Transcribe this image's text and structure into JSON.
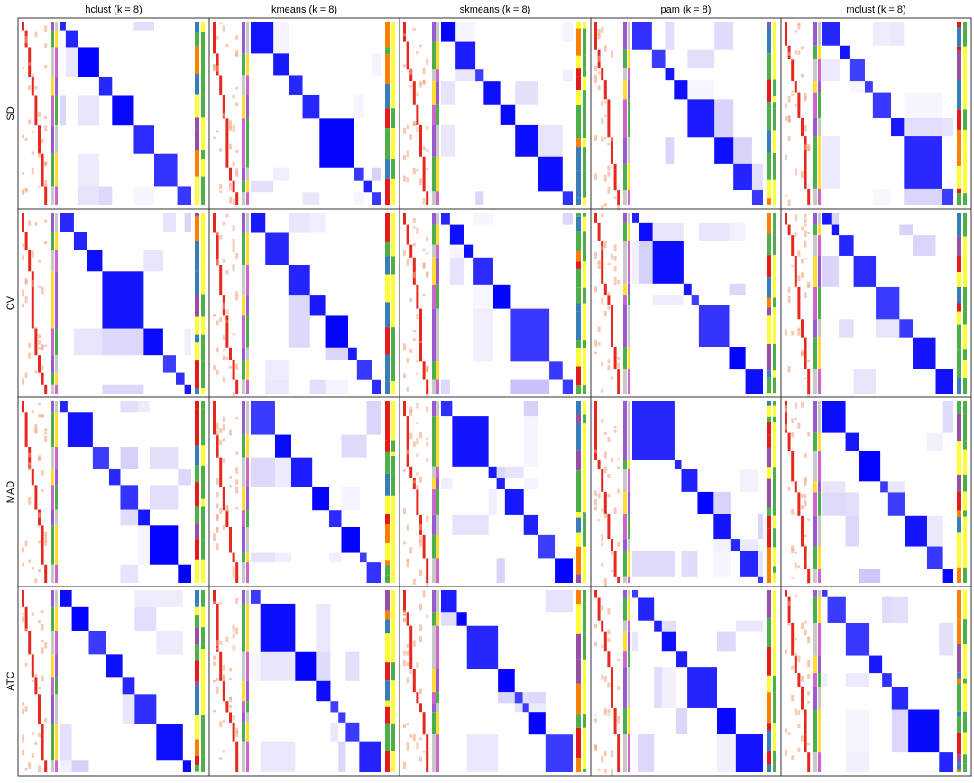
{
  "columns": [
    "hclust (k = 8)",
    "kmeans (k = 8)",
    "skmeans (k = 8)",
    "pam (k = 8)",
    "mclust (k = 8)"
  ],
  "rows": [
    "SD",
    "CV",
    "MAD",
    "ATC"
  ]
}
